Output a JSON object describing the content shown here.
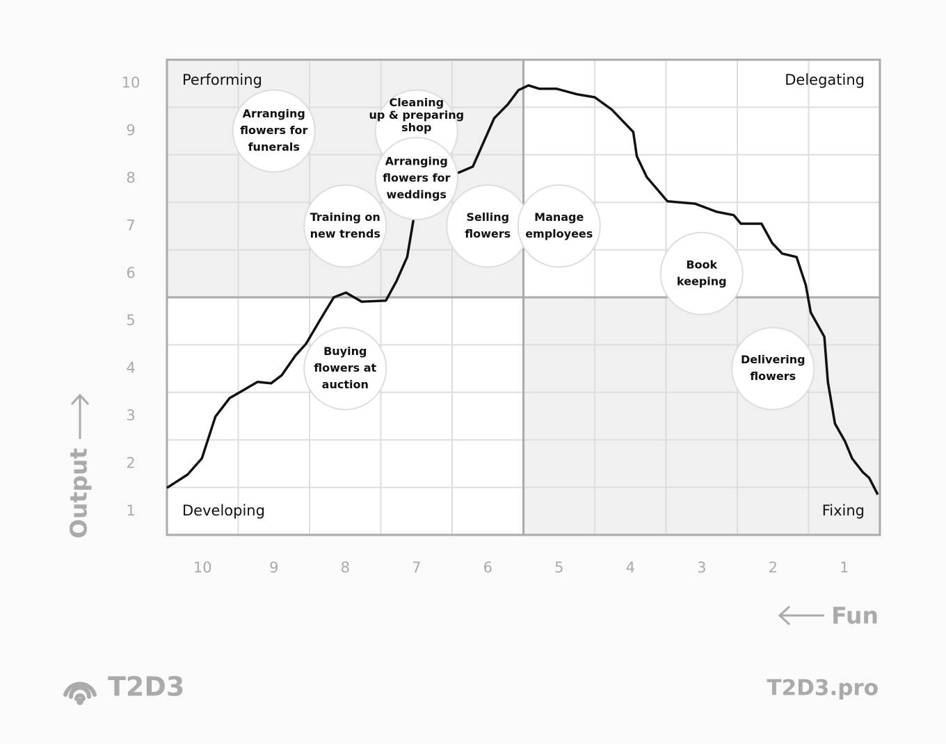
{
  "chart_data": {
    "type": "quadrant-scatter",
    "x_label": "Fun",
    "y_label": "Output",
    "xlim": [
      10.5,
      0.5
    ],
    "ylim": [
      0.5,
      10.5
    ],
    "xticks": [
      10,
      9,
      8,
      7,
      6,
      5,
      4,
      3,
      2,
      1
    ],
    "yticks": [
      1,
      2,
      3,
      4,
      5,
      6,
      7,
      8,
      9,
      10
    ],
    "xgrid": [
      9.5,
      8.5,
      7.5,
      6.5,
      5.5,
      4.5,
      3.5,
      2.5,
      1.5
    ],
    "ygrid": [
      1.5,
      2.5,
      3.5,
      4.5,
      5.5,
      6.5,
      7.5,
      8.5,
      9.5
    ],
    "quadrant_divider": {
      "x": 5.5,
      "y": 5.5
    },
    "quadrants": [
      {
        "label": "Performing",
        "shaded": true
      },
      {
        "label": "Delegating",
        "shaded": false
      },
      {
        "label": "Developing",
        "shaded": false
      },
      {
        "label": "Fixing",
        "shaded": true
      }
    ],
    "tasks": [
      {
        "label_lines": [
          "Arranging",
          "flowers for",
          "funerals"
        ],
        "fun": 9,
        "output": 9
      },
      {
        "label_lines": [
          "Cleaning",
          "up & preparing",
          "shop"
        ],
        "fun": 7,
        "output": 9
      },
      {
        "label_lines": [
          "Arranging",
          "flowers for",
          "weddings"
        ],
        "fun": 7,
        "output": 8
      },
      {
        "label_lines": [
          "Training on",
          "new trends"
        ],
        "fun": 8,
        "output": 7
      },
      {
        "label_lines": [
          "Selling",
          "flowers"
        ],
        "fun": 6,
        "output": 7
      },
      {
        "label_lines": [
          "Manage",
          "employees"
        ],
        "fun": 5,
        "output": 7
      },
      {
        "label_lines": [
          "Book",
          "keeping"
        ],
        "fun": 3,
        "output": 6
      },
      {
        "label_lines": [
          "Buying",
          "flowers at",
          "auction"
        ],
        "fun": 8,
        "output": 4
      },
      {
        "label_lines": [
          "Delivering",
          "flowers"
        ],
        "fun": 2,
        "output": 4
      }
    ],
    "curve": {
      "color": "#111111",
      "x": [
        10.5,
        10.21,
        10.01,
        9.82,
        9.62,
        9.48,
        9.23,
        9.04,
        8.89,
        8.7,
        8.55,
        8.35,
        8.16,
        7.99,
        7.77,
        7.43,
        7.28,
        7.13,
        7.04,
        6.89,
        6.4,
        6.21,
        6.06,
        5.91,
        5.72,
        5.57,
        5.43,
        5.28,
        5.04,
        4.74,
        4.5,
        4.26,
        3.96,
        3.91,
        3.77,
        3.48,
        3.09,
        2.79,
        2.55,
        2.45,
        2.16,
        2.01,
        1.87,
        1.67,
        1.54,
        1.47,
        1.28,
        1.23,
        1.13,
        0.99,
        0.89,
        0.74,
        0.65,
        0.53
      ],
      "y": [
        1.49,
        1.77,
        2.11,
        2.99,
        3.38,
        3.5,
        3.72,
        3.69,
        3.86,
        4.27,
        4.52,
        5.03,
        5.5,
        5.6,
        5.41,
        5.43,
        5.84,
        6.35,
        7.15,
        7.88,
        8.13,
        8.25,
        8.76,
        9.27,
        9.56,
        9.86,
        9.96,
        9.89,
        9.89,
        9.77,
        9.71,
        9.45,
        8.98,
        8.47,
        8.03,
        7.52,
        7.47,
        7.3,
        7.23,
        7.05,
        7.05,
        6.64,
        6.42,
        6.35,
        5.76,
        5.18,
        4.67,
        3.72,
        2.84,
        2.47,
        2.11,
        1.82,
        1.7,
        1.35
      ]
    }
  },
  "brand": {
    "logo_text": "T2D3",
    "site": "T2D3.pro"
  }
}
